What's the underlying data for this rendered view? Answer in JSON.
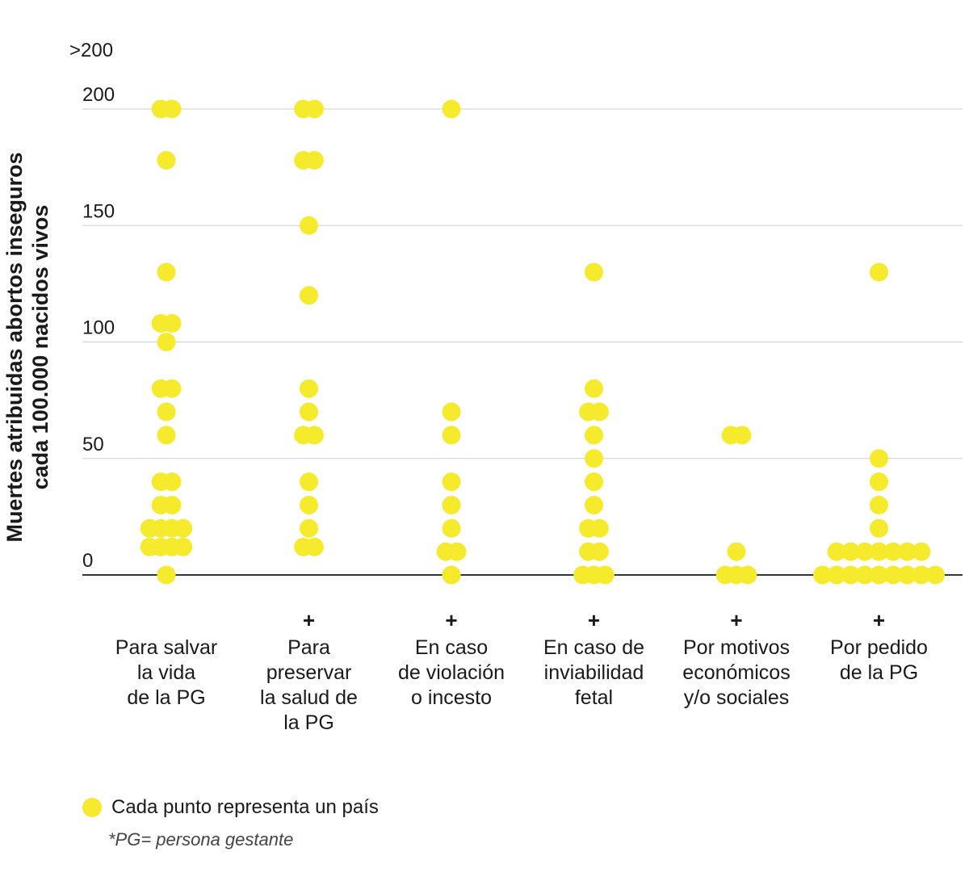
{
  "chart_data": {
    "type": "scatter",
    "ylabel_lines": [
      "Muertes atribuidas abortos inseguros",
      "cada 100.000 nacidos vivos"
    ],
    "ylim": [
      0,
      200
    ],
    "y_ticks": [
      0,
      50,
      100,
      150,
      200
    ],
    "overflow_label": ">200",
    "categories": [
      {
        "label_lines": [
          "Para salvar",
          "la vida",
          "de la PG"
        ],
        "plus": false,
        "values": [
          200,
          178,
          130,
          108,
          100,
          80,
          70,
          60,
          40,
          30,
          20,
          12,
          0
        ],
        "counts": [
          2,
          1,
          1,
          2,
          1,
          2,
          1,
          1,
          2,
          2,
          4,
          4,
          1
        ]
      },
      {
        "label_lines": [
          "Para",
          "preservar",
          "la salud de",
          "la PG"
        ],
        "plus": true,
        "values": [
          200,
          178,
          150,
          120,
          80,
          70,
          60,
          40,
          30,
          20,
          12
        ],
        "counts": [
          2,
          2,
          1,
          1,
          1,
          1,
          2,
          1,
          1,
          1,
          2
        ]
      },
      {
        "label_lines": [
          "En caso",
          "de violación",
          "o incesto"
        ],
        "plus": true,
        "values": [
          200,
          70,
          60,
          40,
          30,
          20,
          10,
          0
        ],
        "counts": [
          1,
          1,
          1,
          1,
          1,
          1,
          2,
          1
        ]
      },
      {
        "label_lines": [
          "En caso de",
          "inviabilidad",
          "fetal"
        ],
        "plus": true,
        "values": [
          130,
          80,
          70,
          60,
          50,
          40,
          30,
          20,
          10,
          0
        ],
        "counts": [
          1,
          1,
          2,
          1,
          1,
          1,
          1,
          2,
          2,
          3
        ]
      },
      {
        "label_lines": [
          "Por motivos",
          "económicos",
          "y/o sociales"
        ],
        "plus": true,
        "values": [
          60,
          10,
          0
        ],
        "counts": [
          2,
          1,
          3
        ]
      },
      {
        "label_lines": [
          "Por pedido",
          "de la PG"
        ],
        "plus": true,
        "values": [
          130,
          50,
          40,
          30,
          20,
          10,
          0
        ],
        "counts": [
          1,
          1,
          1,
          1,
          1,
          7,
          9
        ]
      }
    ],
    "dot_color": "#f5ea2c",
    "grid": true
  },
  "legend": {
    "label": "Cada punto representa un país"
  },
  "footnote": "*PG= persona gestante"
}
